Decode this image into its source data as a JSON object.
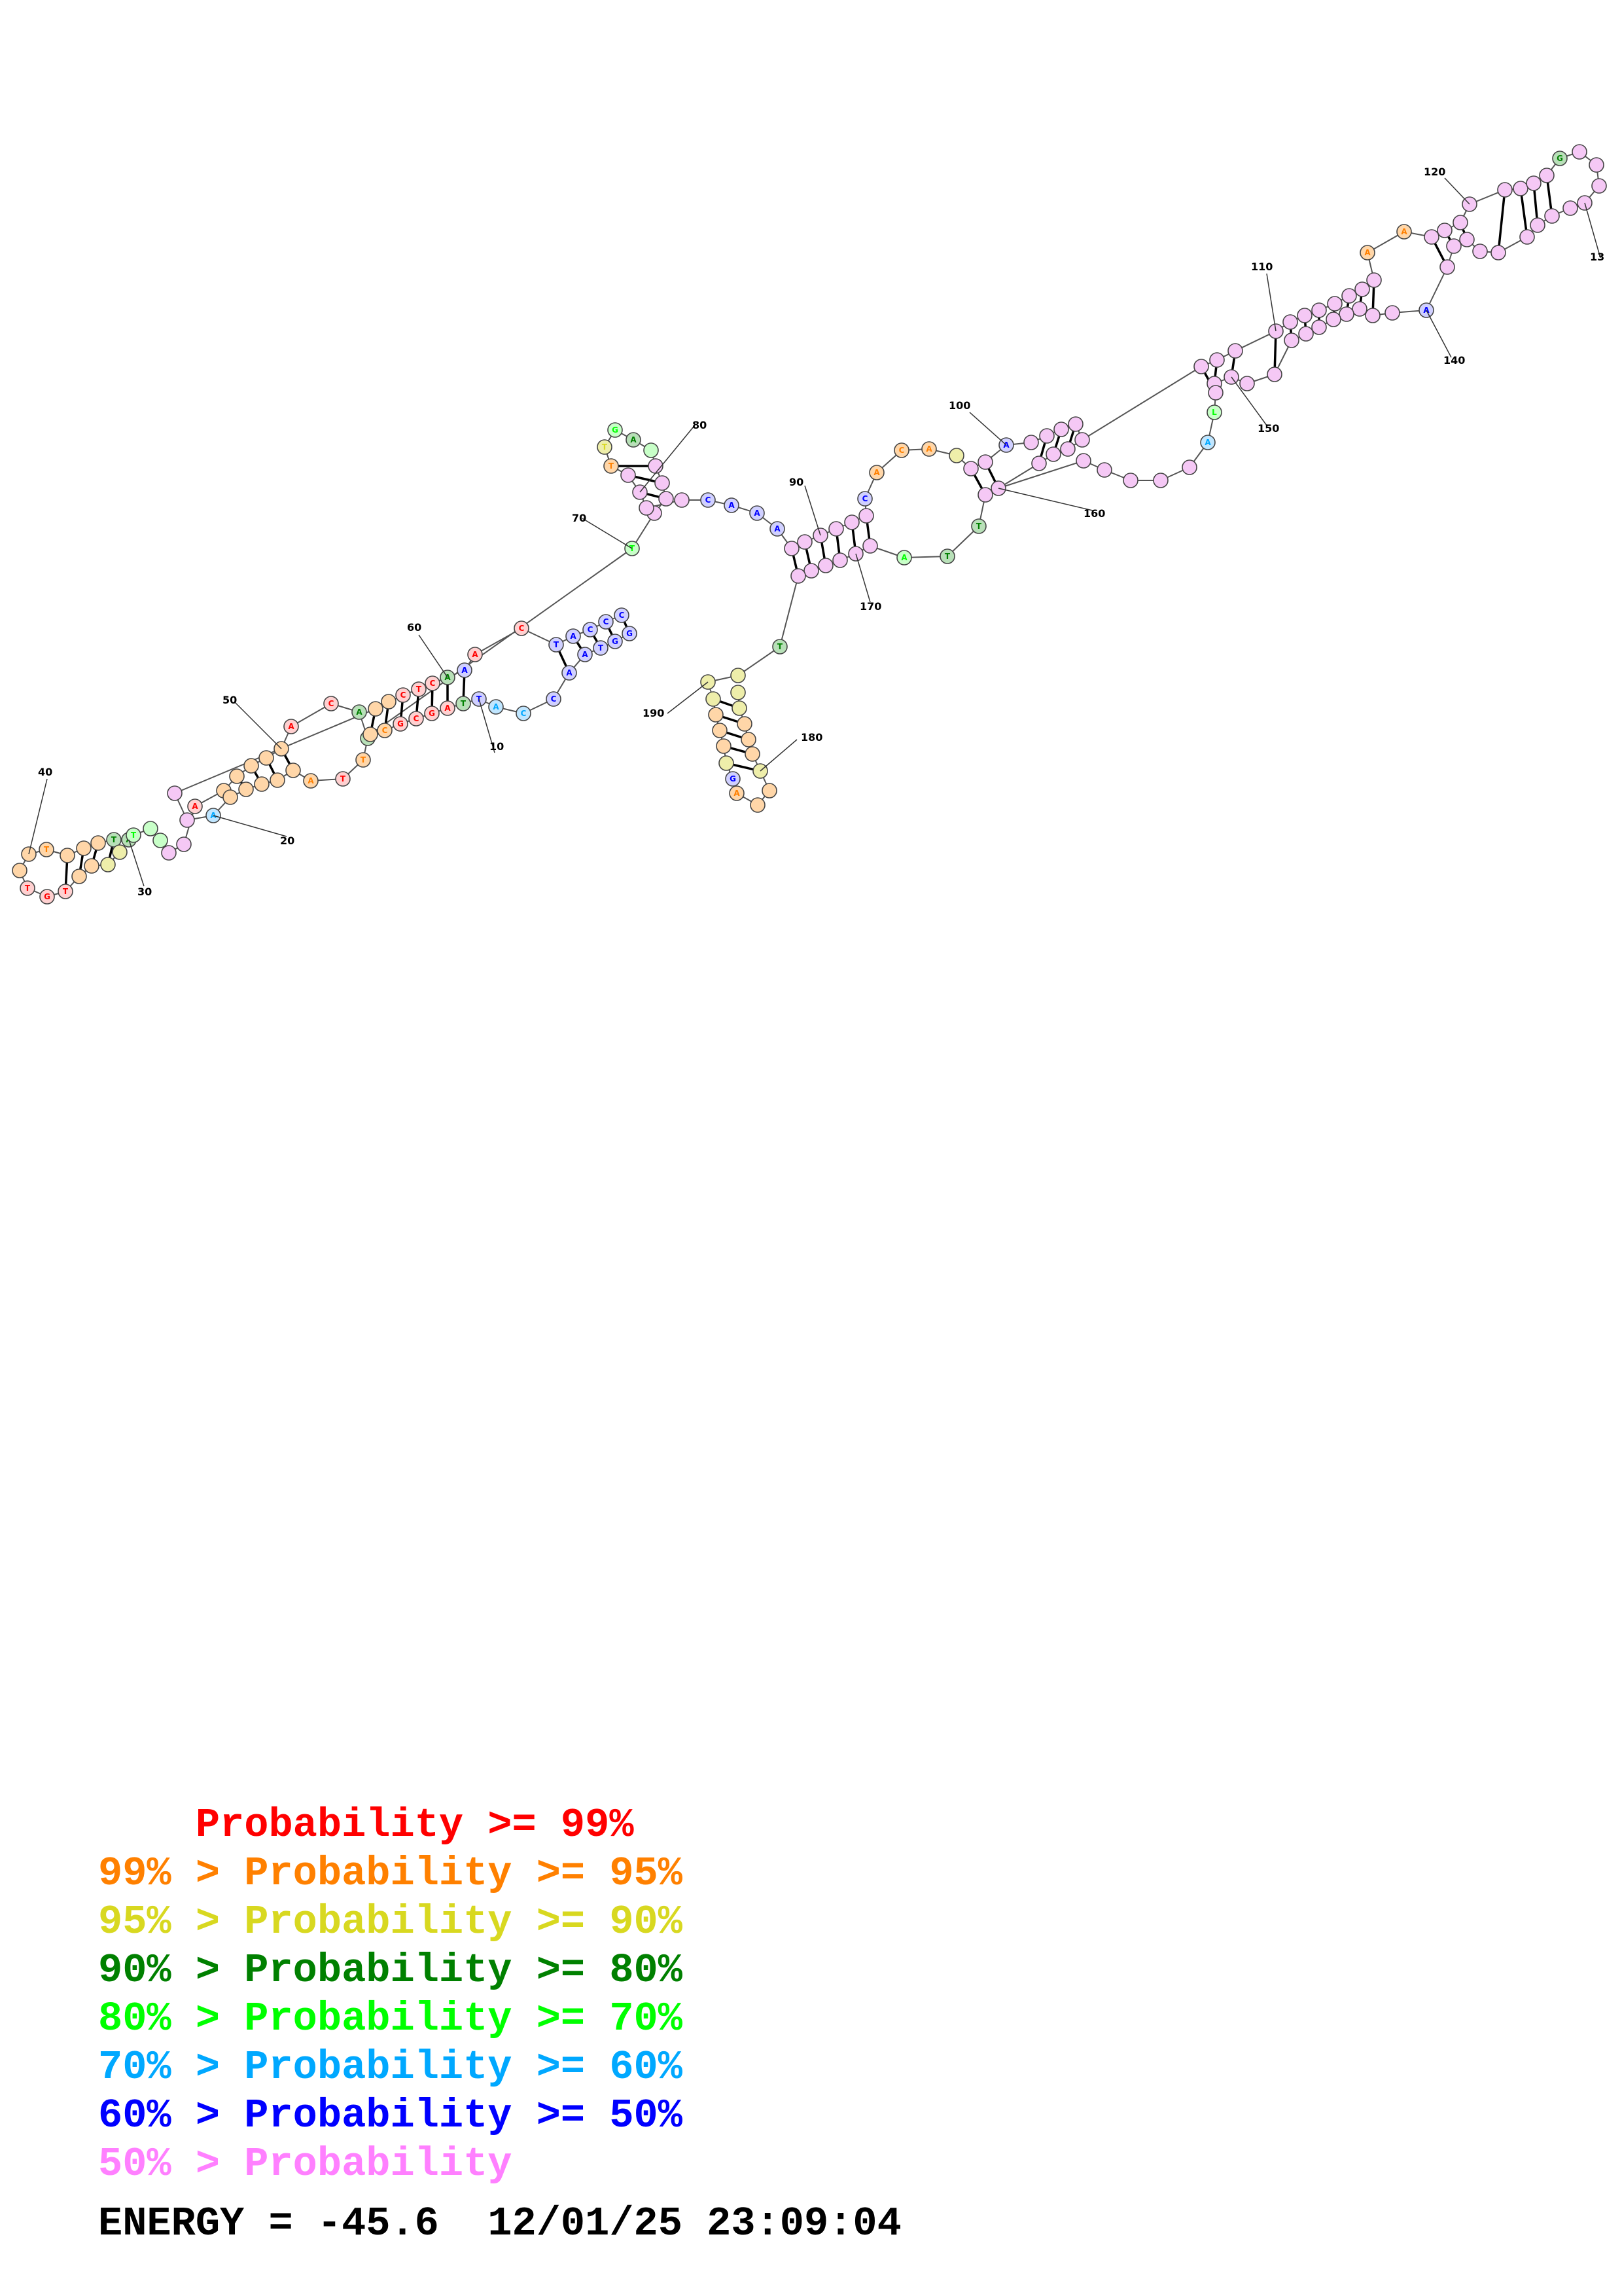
{
  "palette": {
    "red": "#ff0000",
    "orange": "#ff8000",
    "yellow": "#d8d820",
    "green": "#008000",
    "lime": "#00ff00",
    "cyan": "#00a8ff",
    "blue": "#0000ff",
    "pink": "#ff80ff"
  },
  "index_labels": [
    "10",
    "20",
    "30",
    "40",
    "50",
    "60",
    "70",
    "80",
    "90",
    "100",
    "110",
    "120",
    "13",
    "140",
    "150",
    "160",
    "170",
    "180",
    "190"
  ],
  "legend": [
    {
      "prefix": "    ",
      "text": "Probability >= 99%",
      "color": "#ff0000"
    },
    {
      "prefix": "99% > ",
      "text": "Probability >= 95%",
      "color": "#ff8000"
    },
    {
      "prefix": "95% > ",
      "text": "Probability >= 90%",
      "color": "#d8d820"
    },
    {
      "prefix": "90% > ",
      "text": "Probability >= 80%",
      "color": "#008000"
    },
    {
      "prefix": "80% > ",
      "text": "Probability >= 70%",
      "color": "#00ff00"
    },
    {
      "prefix": "70% > ",
      "text": "Probability >= 60%",
      "color": "#00a8ff"
    },
    {
      "prefix": "60% > ",
      "text": "Probability >= 50%",
      "color": "#0000ff"
    },
    {
      "prefix": "50% > ",
      "text": "Probability",
      "color": "#ff80ff"
    }
  ],
  "footer": {
    "energy_label": "ENERGY = ",
    "energy_value": "-45.6",
    "timestamp": "12/01/25 23:09:04"
  }
}
